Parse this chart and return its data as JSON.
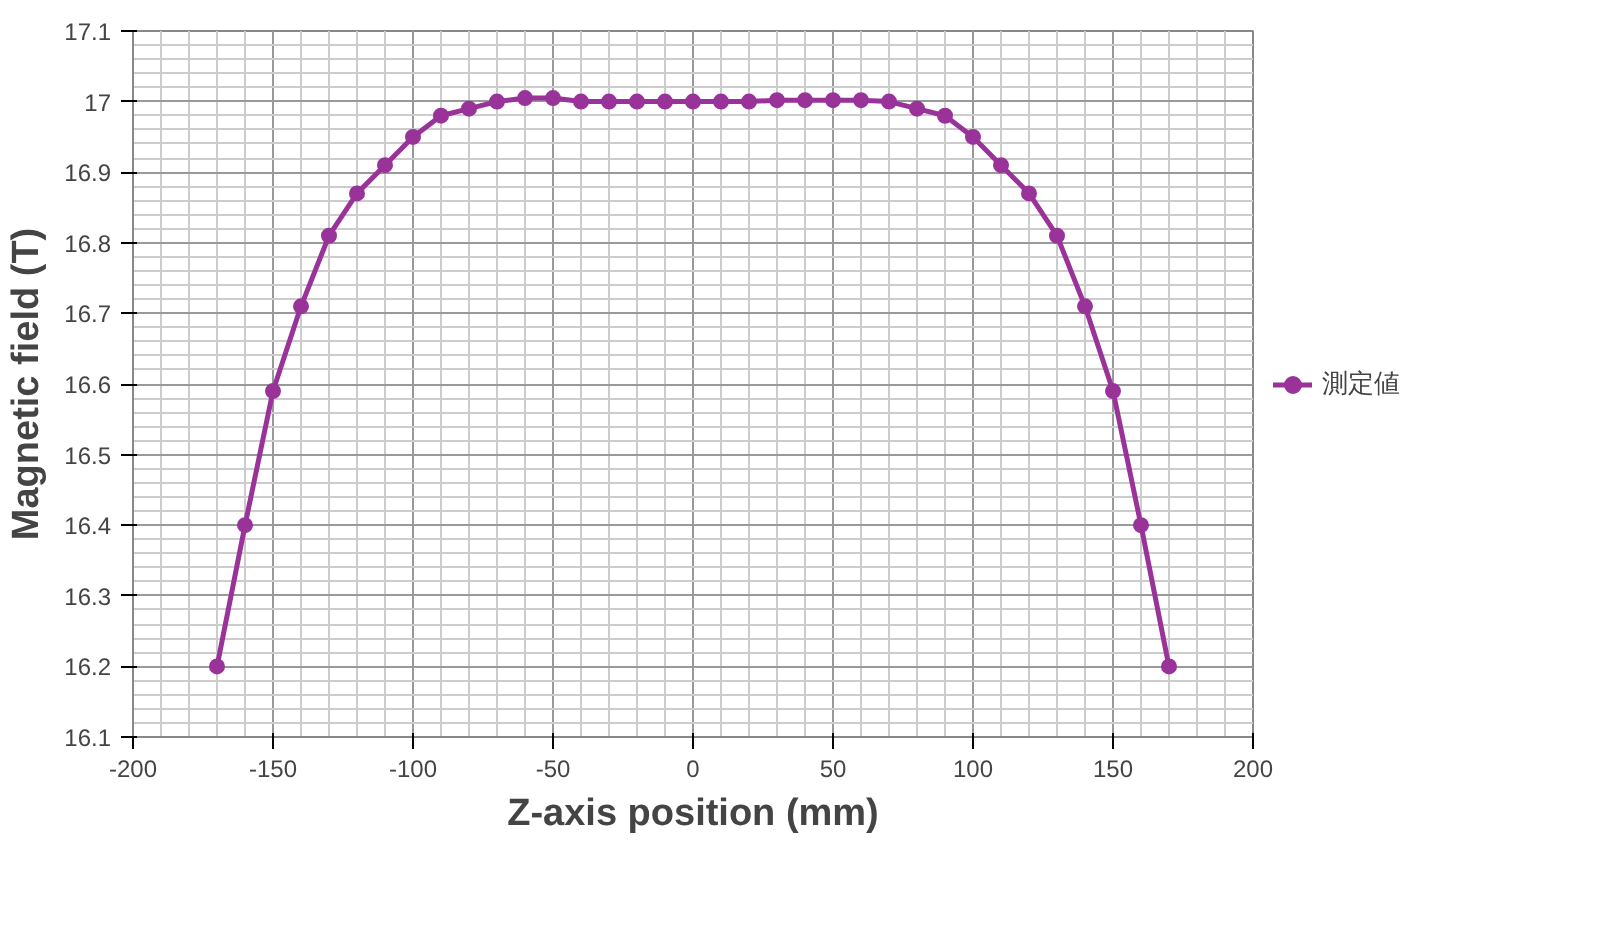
{
  "chart_data": {
    "type": "line",
    "xlabel": "Z-axis position (mm)",
    "ylabel": "Magnetic field (T)",
    "x": [
      -170,
      -160,
      -150,
      -140,
      -130,
      -120,
      -110,
      -100,
      -90,
      -80,
      -70,
      -60,
      -50,
      -40,
      -30,
      -20,
      -10,
      0,
      10,
      20,
      30,
      40,
      50,
      60,
      70,
      80,
      90,
      100,
      110,
      120,
      130,
      140,
      150,
      160,
      170
    ],
    "series": [
      {
        "name": "測定値",
        "color": "#993399",
        "values": [
          16.2,
          16.4,
          16.59,
          16.71,
          16.81,
          16.87,
          16.91,
          16.95,
          16.98,
          16.99,
          17.0,
          17.005,
          17.005,
          17.0,
          17.0,
          17.0,
          17.0,
          17.0,
          17.0,
          17.0,
          17.002,
          17.002,
          17.002,
          17.002,
          17.0,
          16.99,
          16.98,
          16.95,
          16.91,
          16.87,
          16.81,
          16.71,
          16.59,
          16.4,
          16.2
        ]
      }
    ],
    "xlim": [
      -200,
      200
    ],
    "xticks": [
      -200,
      -150,
      -100,
      -50,
      0,
      50,
      100,
      150,
      200
    ],
    "ylim": [
      16.1,
      17.1
    ],
    "yticks": [
      16.1,
      16.2,
      16.3,
      16.4,
      16.5,
      16.6,
      16.7,
      16.8,
      16.9,
      {
        "value": 17.0,
        "label": "17"
      },
      17.1
    ],
    "grid": true,
    "legend": "right",
    "marker": "circle",
    "line_style": "solid"
  }
}
